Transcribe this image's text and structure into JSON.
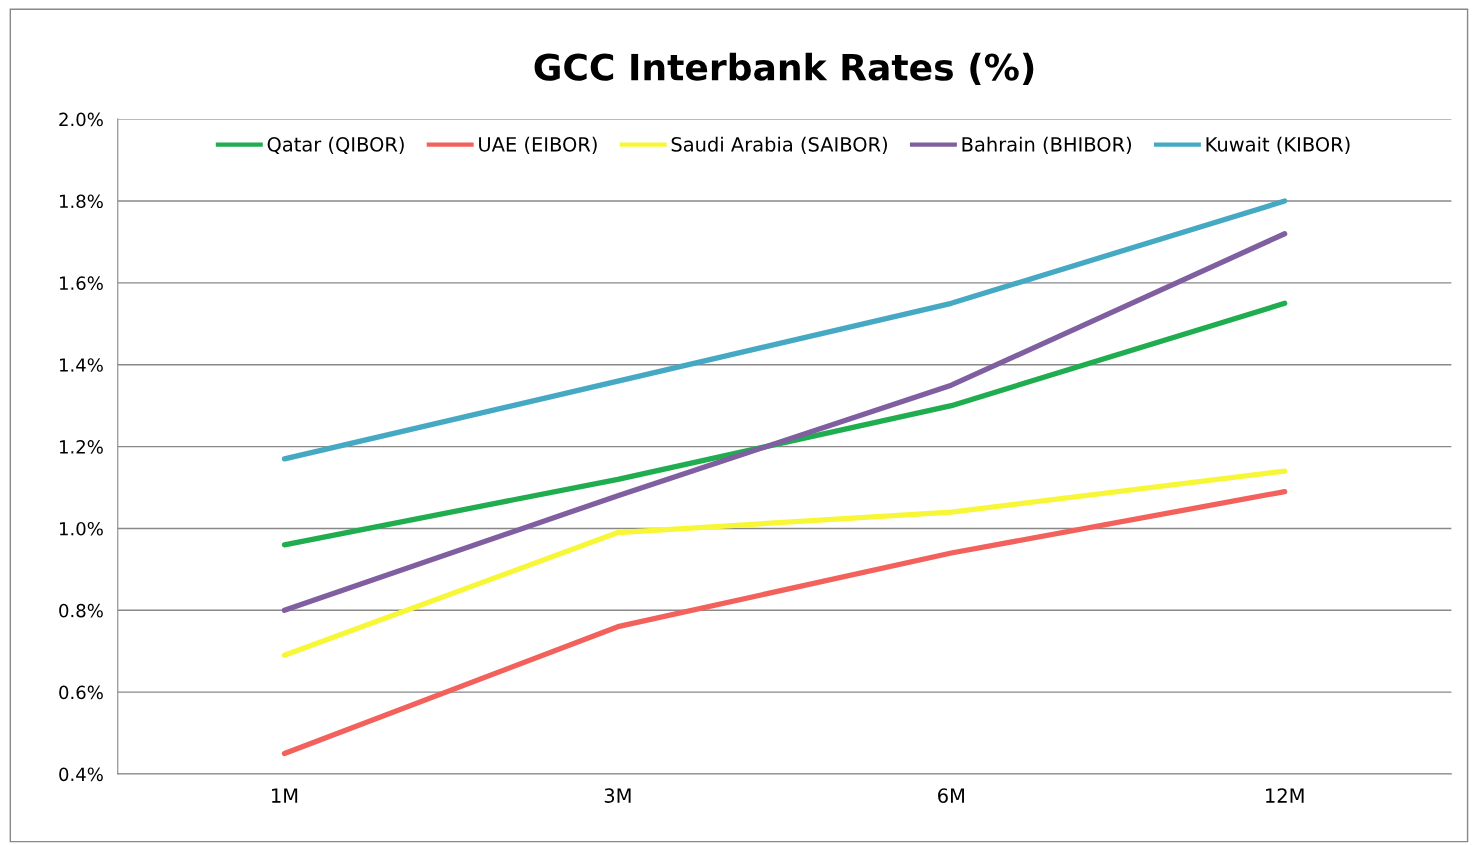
{
  "chart_data": {
    "type": "line",
    "title": "GCC Interbank Rates (%)",
    "categories": [
      "1M",
      "3M",
      "6M",
      "12M"
    ],
    "series": [
      {
        "name": "Qatar (QIBOR)",
        "color": "#1fad4f",
        "values": [
          0.96,
          1.12,
          1.3,
          1.55
        ]
      },
      {
        "name": "UAE (EIBOR)",
        "color": "#f2615b",
        "values": [
          0.45,
          0.76,
          0.94,
          1.09
        ]
      },
      {
        "name": "Saudi Arabia (SAIBOR)",
        "color": "#f7f738",
        "values": [
          0.69,
          0.99,
          1.04,
          1.14
        ]
      },
      {
        "name": "Bahrain (BHIBOR)",
        "color": "#7f5f9f",
        "values": [
          0.8,
          1.08,
          1.35,
          1.72
        ]
      },
      {
        "name": "Kuwait (KIBOR)",
        "color": "#46a9c3",
        "values": [
          1.17,
          1.36,
          1.55,
          1.8
        ]
      }
    ],
    "ylim": [
      0.4,
      2.0
    ],
    "yticks": [
      {
        "value": 0.4,
        "label": "0.4%"
      },
      {
        "value": 0.6,
        "label": "0.6%"
      },
      {
        "value": 0.8,
        "label": "0.8%"
      },
      {
        "value": 1.0,
        "label": "1.0%"
      },
      {
        "value": 1.2,
        "label": "1.2%"
      },
      {
        "value": 1.4,
        "label": "1.4%"
      },
      {
        "value": 1.6,
        "label": "1.6%"
      },
      {
        "value": 1.8,
        "label": "1.8%"
      },
      {
        "value": 2.0,
        "label": "2.0%"
      }
    ],
    "grid": "y",
    "legend": "top",
    "line_style": "solid"
  }
}
